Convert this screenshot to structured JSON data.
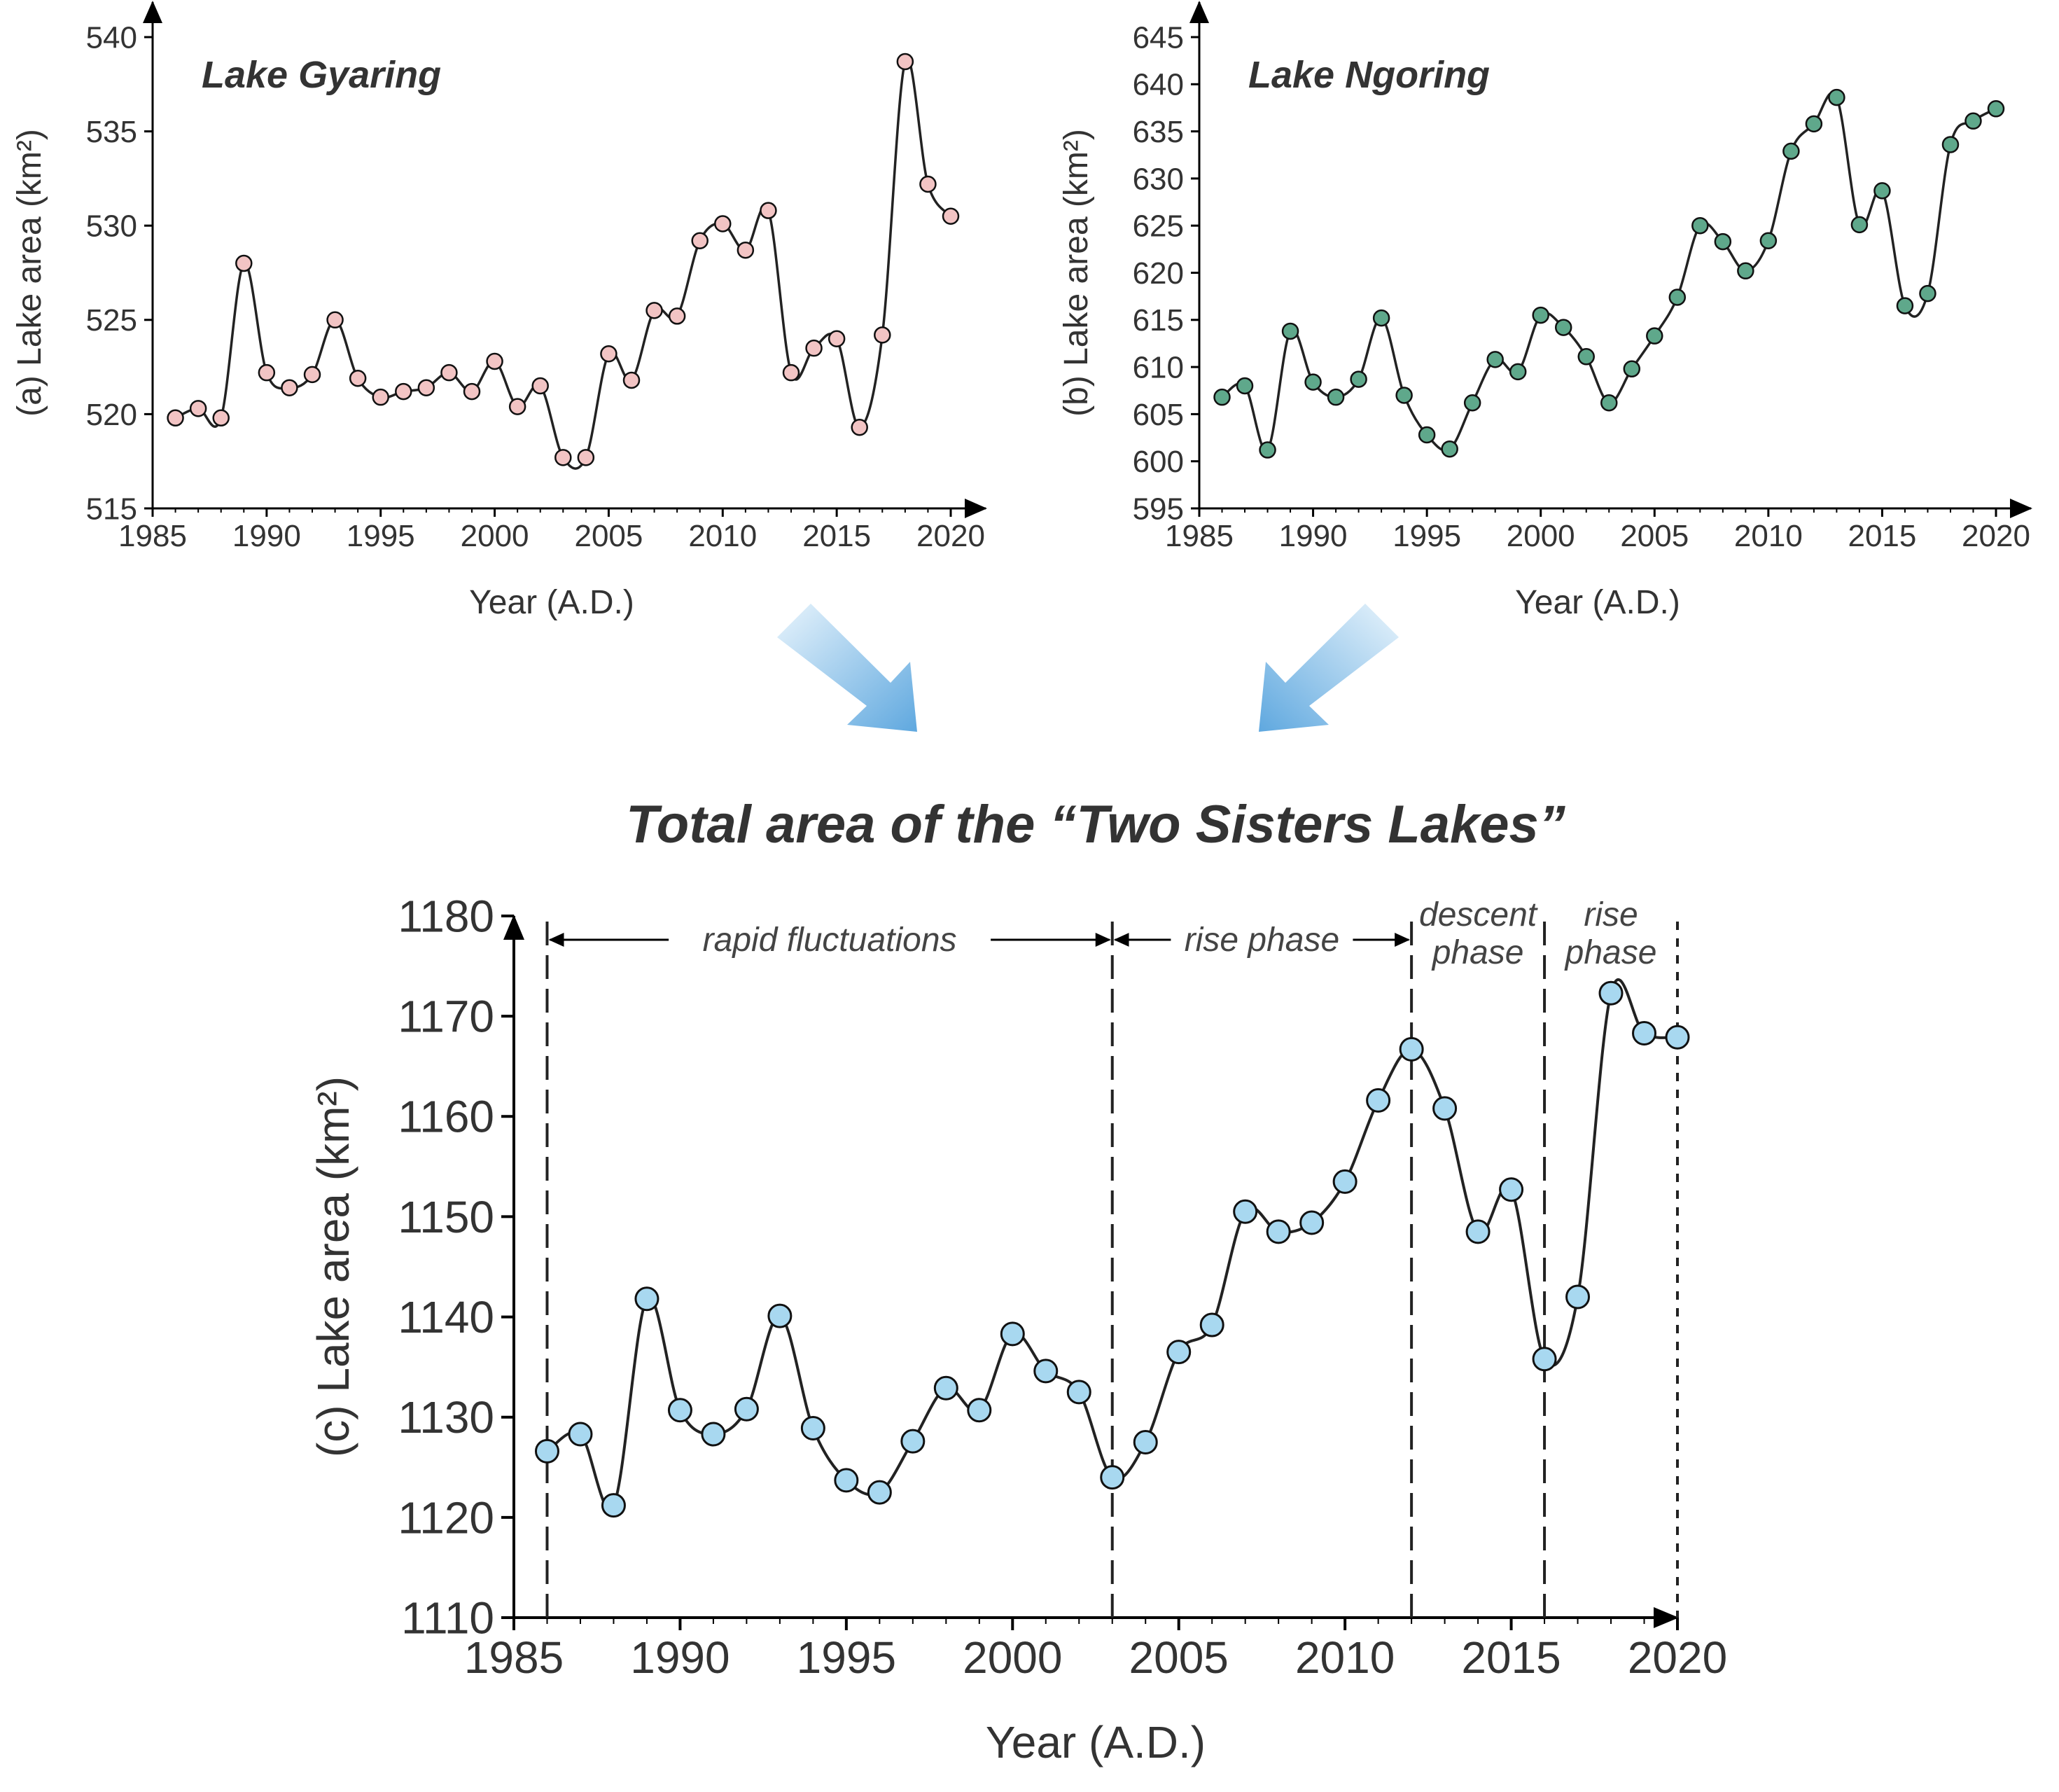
{
  "main_title": "Total area of the “Two Sisters Lakes”",
  "colors": {
    "gyaring_marker": "#f2c4c4",
    "ngoring_marker": "#5fa88b",
    "total_marker": "#a8d8f0",
    "line": "#222222",
    "arrow_light": "#dbeefa",
    "arrow_dark": "#6fb2e3"
  },
  "chart_data": [
    {
      "type": "line",
      "id": "a",
      "title": "Lake Gyaring",
      "ylabel": "(a) Lake area (km²)",
      "xlabel": "Year (A.D.)",
      "xlim": [
        1985,
        2020
      ],
      "ylim": [
        515,
        540
      ],
      "xticks": [
        1985,
        1990,
        1995,
        2000,
        2005,
        2010,
        2015,
        2020
      ],
      "yticks": [
        515,
        520,
        525,
        530,
        535,
        540
      ],
      "x": [
        1986,
        1987,
        1988,
        1989,
        1990,
        1991,
        1992,
        1993,
        1994,
        1995,
        1996,
        1997,
        1998,
        1999,
        2000,
        2001,
        2002,
        2003,
        2004,
        2005,
        2006,
        2007,
        2008,
        2009,
        2010,
        2011,
        2012,
        2013,
        2014,
        2015,
        2016,
        2017,
        2018,
        2019,
        2020
      ],
      "values": [
        519.8,
        520.3,
        519.8,
        528.0,
        522.2,
        521.4,
        522.1,
        525.0,
        521.9,
        520.9,
        521.2,
        521.4,
        522.2,
        521.2,
        522.8,
        520.4,
        521.5,
        517.7,
        517.7,
        523.2,
        521.8,
        525.5,
        525.2,
        529.2,
        530.1,
        528.7,
        530.8,
        522.2,
        523.5,
        524.0,
        519.3,
        524.2,
        538.7,
        532.2,
        530.5
      ]
    },
    {
      "type": "line",
      "id": "b",
      "title": "Lake Ngoring",
      "ylabel": "(b) Lake area (km²)",
      "xlabel": "Year (A.D.)",
      "xlim": [
        1985,
        2020
      ],
      "ylim": [
        595,
        645
      ],
      "xticks": [
        1985,
        1990,
        1995,
        2000,
        2005,
        2010,
        2015,
        2020
      ],
      "yticks": [
        595,
        600,
        605,
        610,
        615,
        620,
        625,
        630,
        635,
        640,
        645
      ],
      "x": [
        1986,
        1987,
        1988,
        1989,
        1990,
        1991,
        1992,
        1993,
        1994,
        1995,
        1996,
        1997,
        1998,
        1999,
        2000,
        2001,
        2002,
        2003,
        2004,
        2005,
        2006,
        2007,
        2008,
        2009,
        2010,
        2011,
        2012,
        2013,
        2014,
        2015,
        2016,
        2017,
        2018,
        2019,
        2020
      ],
      "values": [
        606.8,
        608.0,
        601.2,
        613.8,
        608.4,
        606.8,
        608.7,
        615.2,
        607.0,
        602.8,
        601.3,
        606.2,
        610.8,
        609.5,
        615.5,
        614.2,
        611.1,
        606.2,
        609.8,
        613.3,
        617.4,
        625.0,
        623.3,
        620.2,
        623.4,
        632.9,
        635.8,
        638.6,
        625.1,
        628.7,
        616.5,
        617.8,
        633.6,
        636.1,
        637.4
      ]
    },
    {
      "type": "line",
      "id": "c",
      "title": "",
      "ylabel": "(c) Lake area (km²)",
      "xlabel": "Year (A.D.)",
      "xlim": [
        1985,
        2020
      ],
      "ylim": [
        1110,
        1180
      ],
      "xticks": [
        1985,
        1990,
        1995,
        2000,
        2005,
        2010,
        2015,
        2020
      ],
      "yticks": [
        1110,
        1120,
        1130,
        1140,
        1150,
        1160,
        1170,
        1180
      ],
      "x": [
        1986,
        1987,
        1988,
        1989,
        1990,
        1991,
        1992,
        1993,
        1994,
        1995,
        1996,
        1997,
        1998,
        1999,
        2000,
        2001,
        2002,
        2003,
        2004,
        2005,
        2006,
        2007,
        2008,
        2009,
        2010,
        2011,
        2012,
        2013,
        2014,
        2015,
        2016,
        2017,
        2018,
        2019,
        2020
      ],
      "values": [
        1126.6,
        1128.3,
        1121.2,
        1141.8,
        1130.7,
        1128.3,
        1130.8,
        1140.1,
        1128.9,
        1123.7,
        1122.5,
        1127.6,
        1132.9,
        1130.7,
        1138.3,
        1134.6,
        1132.5,
        1124.0,
        1127.5,
        1136.5,
        1139.2,
        1150.5,
        1148.5,
        1149.4,
        1153.5,
        1161.6,
        1166.7,
        1160.8,
        1148.5,
        1152.7,
        1135.8,
        1142.0,
        1172.3,
        1168.3,
        1167.9
      ],
      "phase_boundaries": [
        1986,
        2003,
        2012,
        2016,
        2020
      ],
      "annotations": [
        {
          "label": "rapid fluctuations",
          "from": 1986,
          "to": 2003,
          "arrow": true
        },
        {
          "label": "rise phase",
          "from": 2003,
          "to": 2012,
          "arrow": true
        },
        {
          "label": "descent phase",
          "from": 2012,
          "to": 2016,
          "arrow": false
        },
        {
          "label": "rise phase",
          "from": 2016,
          "to": 2020,
          "arrow": false
        }
      ]
    }
  ]
}
